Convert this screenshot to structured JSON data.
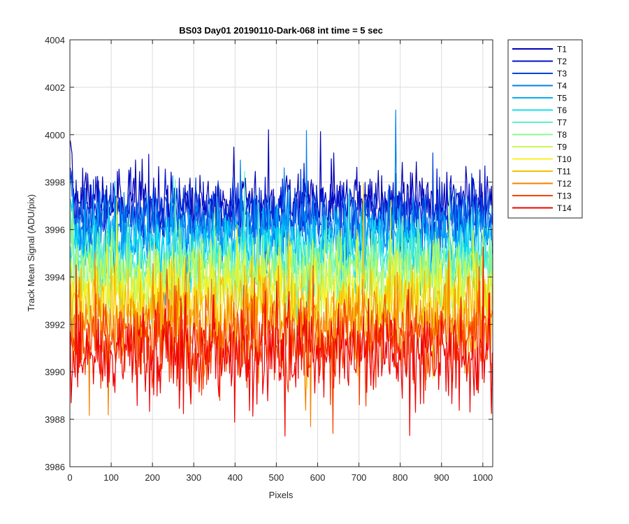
{
  "chart_data": {
    "type": "line",
    "title": "BS03 Day01 20190110-Dark-068 int time = 5 sec",
    "xlabel": "Pixels",
    "ylabel": "Track Mean Signal (ADU/pix)",
    "xlim": [
      0,
      1024
    ],
    "ylim": [
      3986,
      4004
    ],
    "xticks": [
      0,
      100,
      200,
      300,
      400,
      500,
      600,
      700,
      800,
      900,
      1000
    ],
    "yticks": [
      3986,
      3988,
      3990,
      3992,
      3994,
      3996,
      3998,
      4000,
      4002,
      4004
    ],
    "x_tick_labels": [
      "0",
      "100",
      "200",
      "300",
      "400",
      "500",
      "600",
      "700",
      "800",
      "900",
      "1000"
    ],
    "y_tick_labels": [
      "3986",
      "3988",
      "3990",
      "3992",
      "3994",
      "3996",
      "3998",
      "4000",
      "4002",
      "4004"
    ],
    "grid": true,
    "legend_position": "outside-top-right",
    "series": [
      {
        "name": "T1",
        "color": "#0000b4",
        "mean": 3997.2,
        "amplitude": 0.8
      },
      {
        "name": "T2",
        "color": "#0010cc",
        "mean": 3996.8,
        "amplitude": 0.85
      },
      {
        "name": "T3",
        "color": "#0040e0",
        "mean": 3996.4,
        "amplitude": 0.9
      },
      {
        "name": "T4",
        "color": "#0080f0",
        "mean": 3996.0,
        "amplitude": 0.9
      },
      {
        "name": "T5",
        "color": "#00b0f8",
        "mean": 3995.6,
        "amplitude": 0.95
      },
      {
        "name": "T6",
        "color": "#10e0f0",
        "mean": 3995.0,
        "amplitude": 1.0
      },
      {
        "name": "T7",
        "color": "#60f0c8",
        "mean": 3994.6,
        "amplitude": 1.0
      },
      {
        "name": "T8",
        "color": "#90f890",
        "mean": 3994.2,
        "amplitude": 1.05
      },
      {
        "name": "T9",
        "color": "#c8f850",
        "mean": 3993.8,
        "amplitude": 1.1
      },
      {
        "name": "T10",
        "color": "#f8f020",
        "mean": 3993.2,
        "amplitude": 1.15
      },
      {
        "name": "T11",
        "color": "#f8c000",
        "mean": 3992.6,
        "amplitude": 1.2
      },
      {
        "name": "T12",
        "color": "#f88000",
        "mean": 3991.9,
        "amplitude": 1.25
      },
      {
        "name": "T13",
        "color": "#f84000",
        "mean": 3991.3,
        "amplitude": 1.3
      },
      {
        "name": "T14",
        "color": "#f00000",
        "mean": 3990.8,
        "amplitude": 1.3
      }
    ]
  }
}
